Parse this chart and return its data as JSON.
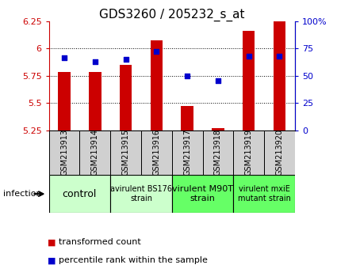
{
  "title": "GDS3260 / 205232_s_at",
  "samples": [
    "GSM213913",
    "GSM213914",
    "GSM213915",
    "GSM213916",
    "GSM213917",
    "GSM213918",
    "GSM213919",
    "GSM213920"
  ],
  "transformed_count": [
    5.78,
    5.78,
    5.85,
    6.07,
    5.47,
    5.27,
    6.16,
    6.25
  ],
  "percentile_rank": [
    66,
    63,
    65,
    72,
    50,
    45,
    68,
    68
  ],
  "ylim_left": [
    5.25,
    6.25
  ],
  "ylim_right": [
    0,
    100
  ],
  "yticks_left": [
    5.25,
    5.5,
    5.75,
    6.0,
    6.25
  ],
  "yticks_right": [
    0,
    25,
    50,
    75,
    100
  ],
  "ytick_labels_left": [
    "5.25",
    "5.5",
    "5.75",
    "6",
    "6.25"
  ],
  "ytick_labels_right": [
    "0",
    "25",
    "50",
    "75",
    "100%"
  ],
  "groups": [
    {
      "label": "control",
      "samples": [
        0,
        1
      ],
      "color": "#ccffcc",
      "fontsize": 9
    },
    {
      "label": "avirulent BS176\nstrain",
      "samples": [
        2,
        3
      ],
      "color": "#ccffcc",
      "fontsize": 7
    },
    {
      "label": "virulent M90T\nstrain",
      "samples": [
        4,
        5
      ],
      "color": "#66ff66",
      "fontsize": 8
    },
    {
      "label": "virulent mxiE\nmutant strain",
      "samples": [
        6,
        7
      ],
      "color": "#66ff66",
      "fontsize": 7
    }
  ],
  "bar_color": "#cc0000",
  "dot_color": "#0000cc",
  "bar_width": 0.4,
  "baseline": 5.25,
  "bg_color": "#ffffff",
  "plot_bg": "#ffffff",
  "tick_label_color_left": "#cc0000",
  "tick_label_color_right": "#0000cc",
  "sample_box_color": "#d0d0d0",
  "legend_items": [
    {
      "label": "transformed count",
      "color": "#cc0000"
    },
    {
      "label": "percentile rank within the sample",
      "color": "#0000cc"
    }
  ],
  "infection_label": "infection",
  "font_size_title": 11,
  "font_size_ticks": 8,
  "font_size_legend": 8,
  "font_size_sample": 7,
  "dotted_lines": [
    5.5,
    5.75,
    6.0
  ],
  "n_samples": 8
}
